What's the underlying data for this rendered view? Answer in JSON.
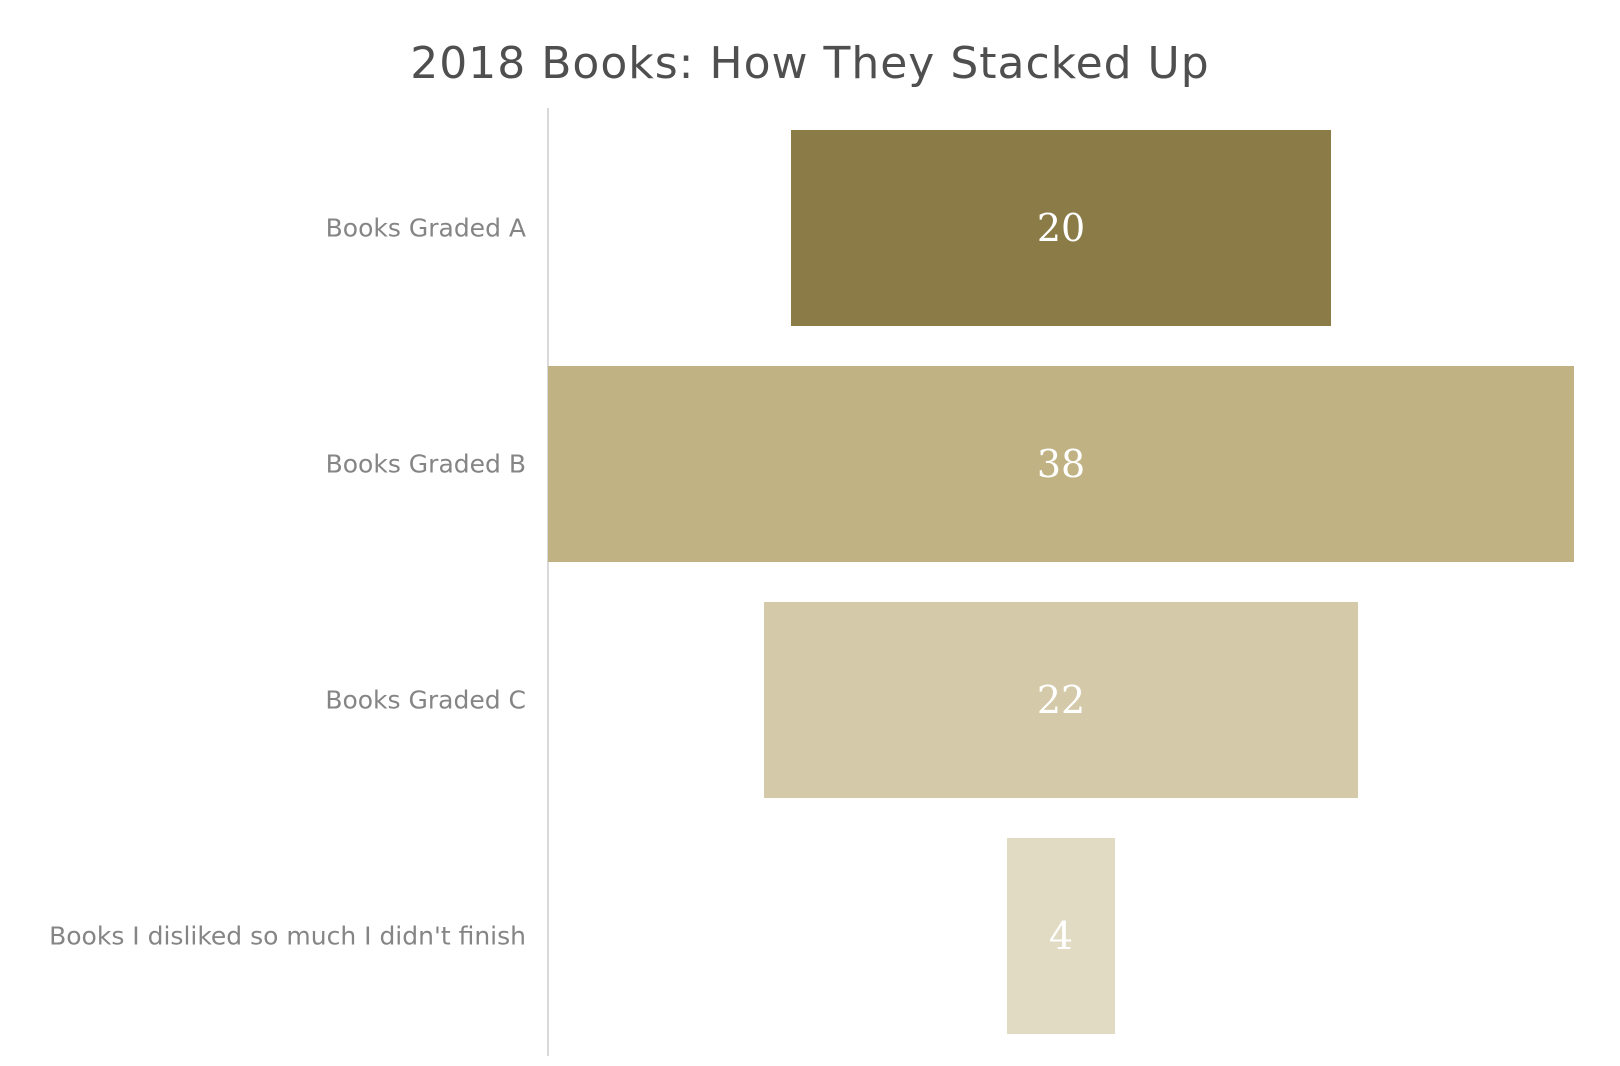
{
  "chart_data": {
    "type": "bar",
    "orientation": "horizontal",
    "style": "funnel",
    "title": "2018 Books: How They Stacked Up",
    "categories": [
      "Books Graded A",
      "Books Graded B",
      "Books Graded C",
      "Books I disliked so much I didn't finish"
    ],
    "values": [
      20,
      38,
      22,
      4
    ],
    "bar_colors": [
      "#8a7b47",
      "#c0b283",
      "#d4c9a8",
      "#e2dbc4"
    ],
    "value_label_color": "#ffffff",
    "axis_line_color": "#d9d9d9",
    "grid": false,
    "legend": false
  }
}
